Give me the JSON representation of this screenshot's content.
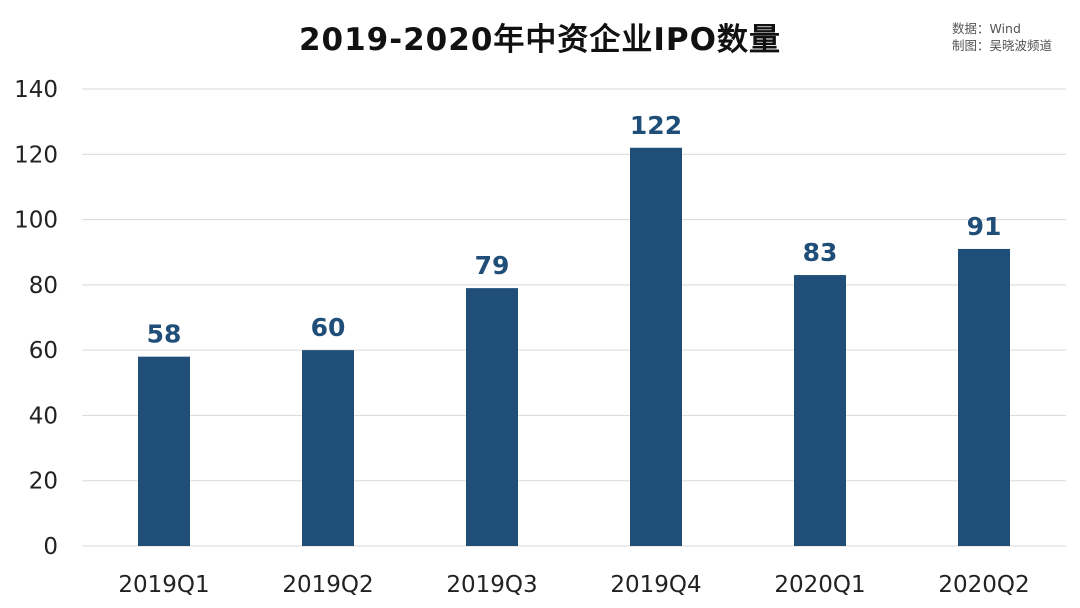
{
  "chart_data": {
    "type": "bar",
    "title": "2019-2020年中资企业IPO数量",
    "categories": [
      "2019Q1",
      "2019Q2",
      "2019Q3",
      "2019Q4",
      "2020Q1",
      "2020Q2"
    ],
    "values": [
      58,
      60,
      79,
      122,
      83,
      91
    ],
    "xlabel": "",
    "ylabel": "",
    "ylim": [
      0,
      140
    ],
    "yticks": [
      0,
      20,
      40,
      60,
      80,
      100,
      120,
      140
    ],
    "grid": true,
    "legend": "none",
    "data_labels": true,
    "colors": {
      "bar": "#1f4e79",
      "label": "#1f4e79",
      "grid": "#d9d9d9"
    }
  },
  "source_notes": {
    "line1": "数据：Wind",
    "line2": "制图：吴晓波频道"
  }
}
